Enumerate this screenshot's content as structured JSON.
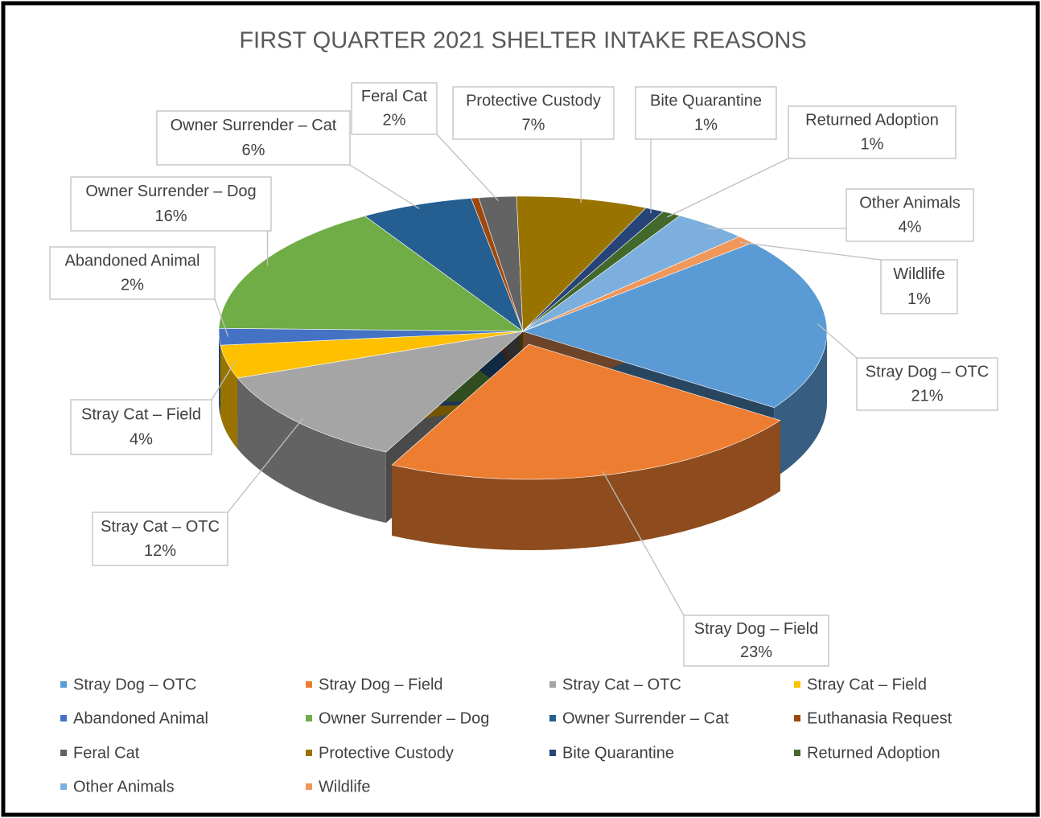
{
  "chart_data": {
    "type": "pie",
    "title": "FIRST QUARTER 2021 SHELTER INTAKE REASONS",
    "categories": [
      "Stray Dog – OTC",
      "Stray Dog – Field",
      "Stray Cat – OTC",
      "Stray Cat – Field",
      "Abandoned Animal",
      "Owner Surrender – Dog",
      "Owner Surrender – Cat",
      "Euthanasia Request",
      "Feral Cat",
      "Protective Custody",
      "Bite Quarantine",
      "Returned Adoption",
      "Other Animals",
      "Wildlife"
    ],
    "values": [
      21,
      23,
      12,
      4,
      2,
      16,
      6,
      0.4,
      2,
      7,
      1,
      1,
      4,
      1
    ],
    "value_labels": [
      "21%",
      "23%",
      "12%",
      "4%",
      "2%",
      "16%",
      "6%",
      null,
      "2%",
      "7%",
      "1%",
      "1%",
      "4%",
      "1%"
    ],
    "colors": [
      "#5b9bd5",
      "#ed7d31",
      "#a5a5a5",
      "#ffc000",
      "#4472c4",
      "#70ad47",
      "#255e91",
      "#9e480e",
      "#636363",
      "#997300",
      "#264478",
      "#43682b",
      "#7cafdd",
      "#f1975a"
    ],
    "legend": "bottom"
  }
}
